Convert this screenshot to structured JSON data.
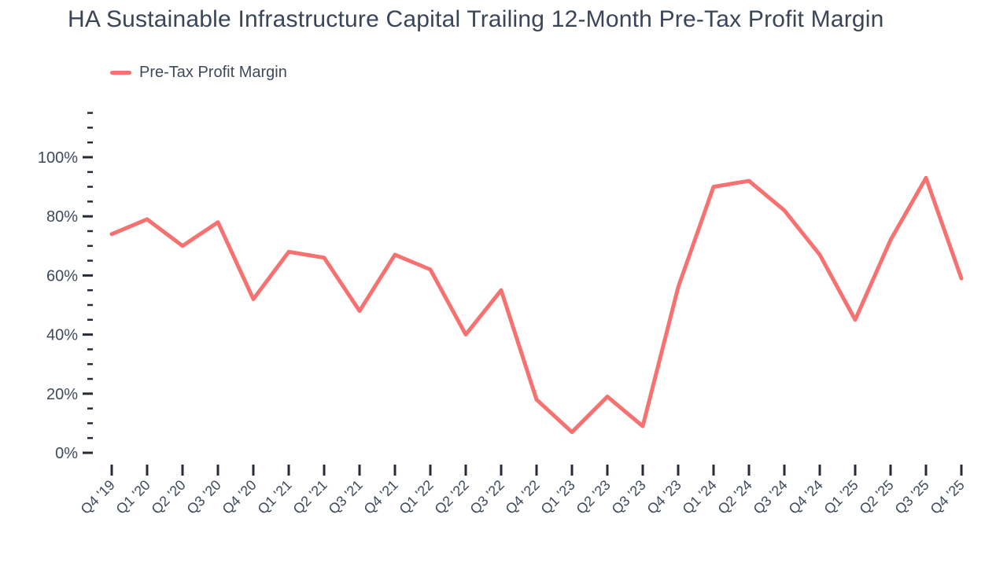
{
  "chart": {
    "title": "HA Sustainable Infrastructure Capital Trailing 12-Month Pre-Tax Profit Margin",
    "legend_label": "Pre-Tax Profit Margin"
  },
  "chart_data": {
    "type": "line",
    "title": "HA Sustainable Infrastructure Capital Trailing 12-Month Pre-Tax Profit Margin",
    "categories": [
      "Q4 '19",
      "Q1 '20",
      "Q2 '20",
      "Q3 '20",
      "Q4 '20",
      "Q1 '21",
      "Q2 '21",
      "Q3 '21",
      "Q4 '21",
      "Q1 '22",
      "Q2 '22",
      "Q3 '22",
      "Q4 '22",
      "Q1 '23",
      "Q2 '23",
      "Q3 '23",
      "Q4 '23",
      "Q1 '24",
      "Q2 '24",
      "Q3 '24",
      "Q4 '24",
      "Q1 '25",
      "Q2 '25",
      "Q3 '25",
      "Q4 '25"
    ],
    "series": [
      {
        "name": "Pre-Tax Profit Margin",
        "values": [
          74,
          79,
          70,
          78,
          52,
          68,
          66,
          48,
          67,
          62,
          40,
          55,
          18,
          7,
          19,
          9,
          56,
          90,
          92,
          82,
          67,
          45,
          72,
          93,
          59
        ]
      }
    ],
    "xlabel": "",
    "ylabel": "",
    "y_unit": "%",
    "ylim": [
      0,
      115
    ],
    "ytick_major_step": 20,
    "ytick_minor_step": 5,
    "ytick_labels": [
      "0%",
      "20%",
      "40%",
      "60%",
      "80%",
      "100%"
    ],
    "grid": false,
    "legend_position": "top-left",
    "colors": {
      "line": "#f87171",
      "title_text": "#3a4557",
      "axis_text": "#3e4a5c",
      "tick": "#252c38"
    }
  }
}
